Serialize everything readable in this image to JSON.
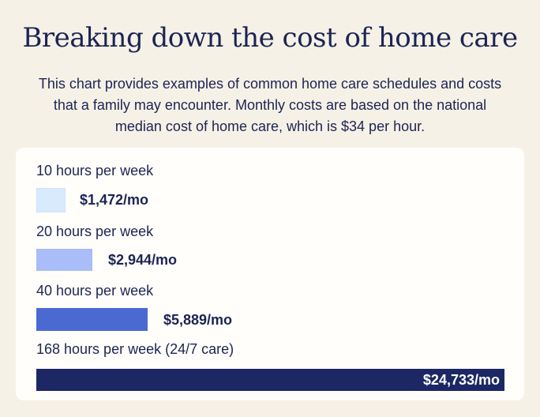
{
  "header": {
    "title": "Breaking down the cost of home care",
    "subtitle": "This chart provides examples of common home care schedules and costs that a family may encounter. Monthly costs are based on the national median cost of home care, which is $34 per hour."
  },
  "chart_data": {
    "type": "bar",
    "orientation": "horizontal",
    "categories": [
      "10 hours per week",
      "20 hours per week",
      "40 hours per week",
      "168 hours per week (24/7 care)"
    ],
    "values": [
      1472,
      2944,
      5889,
      24733
    ],
    "value_labels": [
      "$1,472/mo",
      "$2,944/mo",
      "$5,889/mo",
      "$24,733/mo"
    ],
    "colors": [
      "#d8ebfd",
      "#a9bdf8",
      "#4a6ad2",
      "#1c2764"
    ],
    "label_inside_last": true
  }
}
